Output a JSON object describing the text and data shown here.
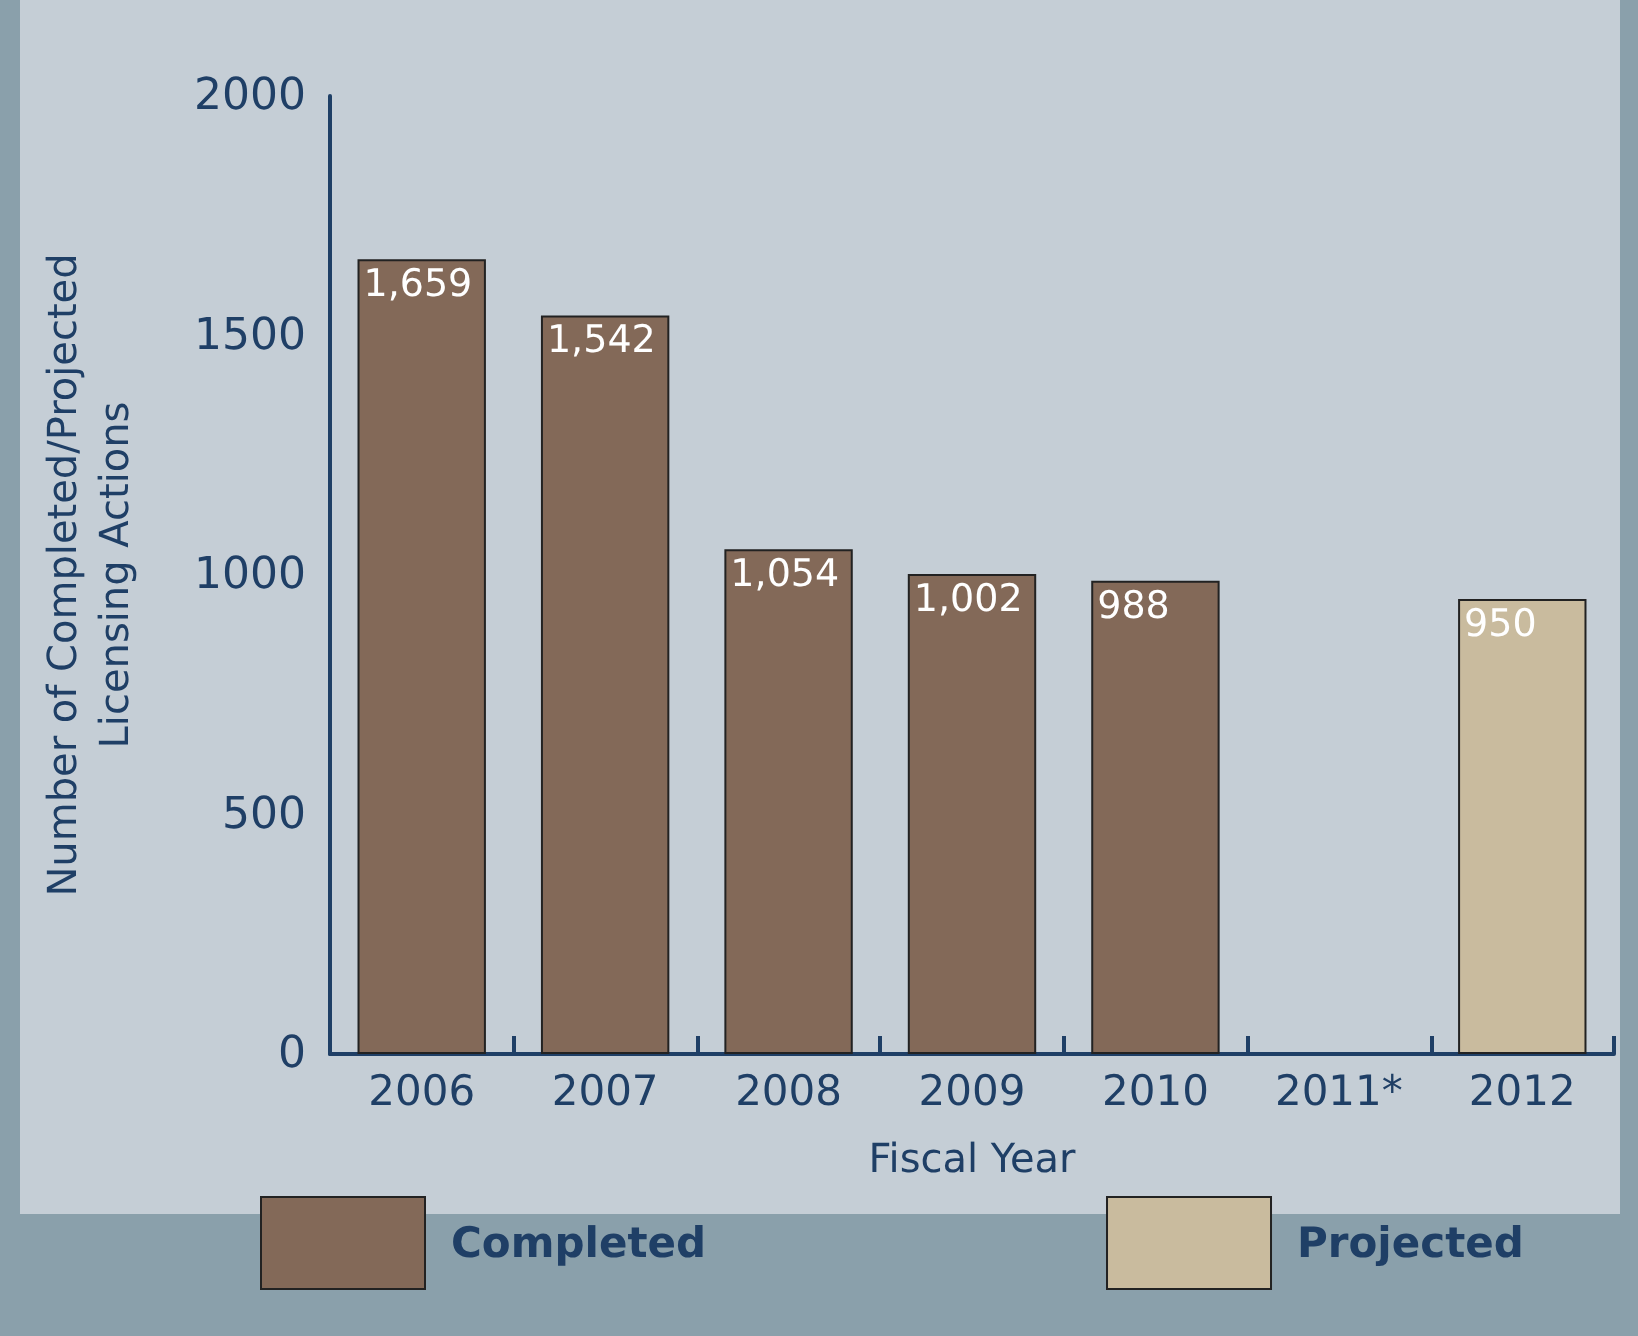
{
  "chart_data": {
    "type": "bar",
    "xlabel": "Fiscal Year",
    "ylabel": "Number of Completed/Projected\nLicensing Actions",
    "categories": [
      "2006",
      "2007",
      "2008",
      "2009",
      "2010",
      "2011*",
      "2012"
    ],
    "series": [
      {
        "name": "Completed",
        "color": "#836958",
        "values": [
          1659,
          1542,
          1054,
          1002,
          988,
          null,
          null
        ],
        "value_labels": [
          "1,659",
          "1,542",
          "1,054",
          "1,002",
          "988",
          null,
          null
        ]
      },
      {
        "name": "Projected",
        "color": "#c9bb9e",
        "values": [
          null,
          null,
          null,
          null,
          null,
          null,
          950
        ],
        "value_labels": [
          null,
          null,
          null,
          null,
          null,
          null,
          "950"
        ]
      }
    ],
    "ylim": [
      0,
      2000
    ],
    "yticks": [
      0,
      500,
      1000,
      1500,
      2000
    ],
    "grid": false,
    "legend": "bottom"
  }
}
